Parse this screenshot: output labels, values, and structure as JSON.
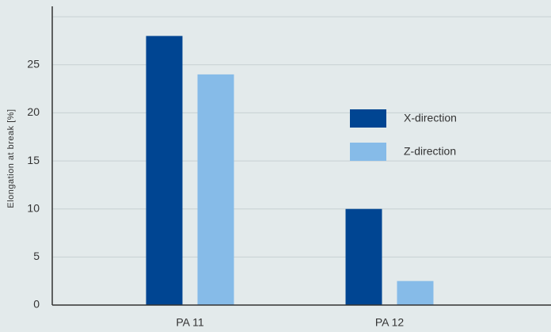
{
  "chart_data": {
    "type": "bar",
    "y_label": "Elongation at break [%]",
    "categories": [
      "PA 11",
      "PA 12"
    ],
    "series": [
      {
        "name": "X-direction",
        "color": "#004592",
        "values": [
          28,
          10
        ]
      },
      {
        "name": "Z-direction",
        "color": "#86bbe8",
        "values": [
          24,
          2.5
        ]
      }
    ],
    "ylim": [
      0,
      31
    ],
    "yticks": [
      0,
      5,
      10,
      15,
      20,
      25
    ],
    "ygrid": [
      5,
      10,
      15,
      20,
      25,
      30
    ],
    "grid": true
  }
}
